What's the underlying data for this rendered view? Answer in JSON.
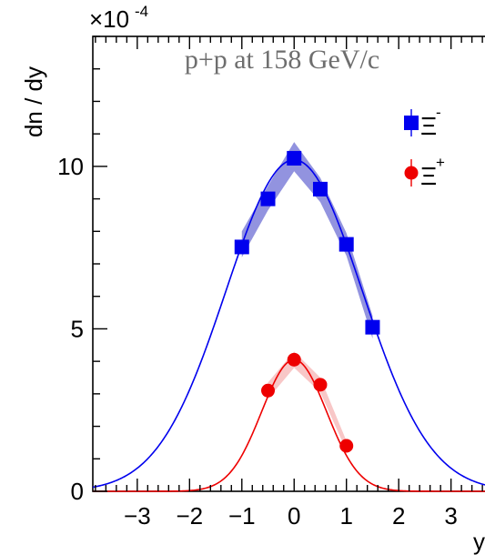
{
  "chart_data": {
    "type": "scatter",
    "title": "p+p at 158 GeV/c",
    "xlabel": "y",
    "ylabel": "dn / dy",
    "y_multiplier": "×10",
    "y_multiplier_exp": "-4",
    "xlim": [
      -3.85,
      3.65
    ],
    "ylim": [
      0,
      14
    ],
    "x_ticks": [
      -3,
      -2,
      -1,
      0,
      1,
      2,
      3
    ],
    "x_tick_labels": [
      "−3",
      "−2",
      "−1",
      "0",
      "1",
      "2",
      "3"
    ],
    "y_ticks": [
      0,
      5,
      10
    ],
    "y_tick_labels": [
      "0",
      "5",
      "10"
    ],
    "legend_position": "top-right",
    "series": [
      {
        "name": "Ξ",
        "name_sup": "-",
        "color": "#0000ee",
        "marker": "square",
        "x": [
          -1.0,
          -0.5,
          0.0,
          0.5,
          1.0,
          1.5
        ],
        "y": [
          7.52,
          9.0,
          10.25,
          9.3,
          7.6,
          5.05
        ],
        "band_x": [
          -1.0,
          -0.5,
          0.0,
          0.5,
          1.0,
          1.5
        ],
        "band_low": [
          7.2,
          8.65,
          9.85,
          8.9,
          7.25,
          4.7
        ],
        "band_high": [
          8.0,
          9.4,
          10.75,
          9.65,
          7.95,
          5.4
        ],
        "fit": {
          "type": "gaussian",
          "amplitude": 10.2,
          "mean": 0.0,
          "sigma": 1.3
        }
      },
      {
        "name": "Ξ",
        "name_sup": "+",
        "color": "#ee0000",
        "marker": "circle",
        "x": [
          -0.5,
          0.0,
          0.5,
          1.0
        ],
        "y": [
          3.1,
          4.05,
          3.28,
          1.4
        ],
        "band_x": [
          -0.5,
          0.0,
          0.5,
          1.0
        ],
        "band_low": [
          2.85,
          3.8,
          3.05,
          1.25
        ],
        "band_high": [
          3.35,
          4.3,
          3.5,
          1.55
        ],
        "fit": {
          "type": "gaussian",
          "amplitude": 4.05,
          "mean": 0.0,
          "sigma": 0.62
        }
      }
    ]
  }
}
